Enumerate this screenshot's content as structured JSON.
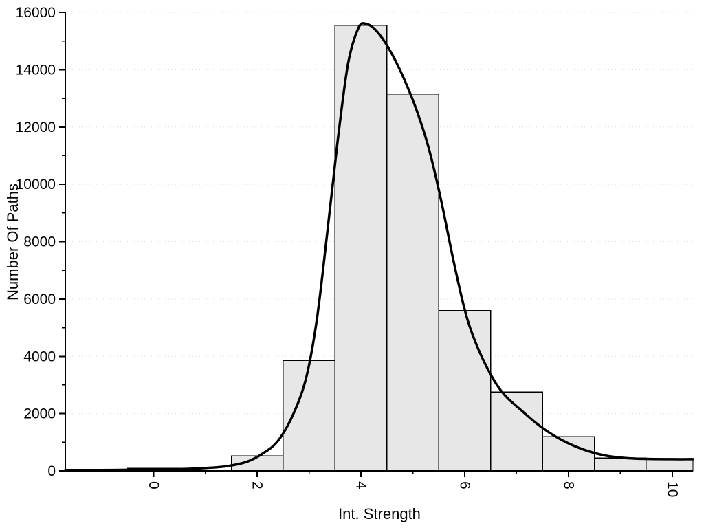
{
  "chart_data": {
    "type": "bar",
    "subtype": "histogram-with-density-curve",
    "title": "",
    "xlabel": "Int. Strength",
    "ylabel": "Number Of Paths",
    "xlim": [
      -1.7,
      10.4
    ],
    "ylim": [
      0,
      16000
    ],
    "x_major_ticks": [
      0,
      2,
      4,
      6,
      8,
      10
    ],
    "x_minor_ticks": [
      1,
      3,
      5,
      7,
      9
    ],
    "y_major_ticks": [
      0,
      2000,
      4000,
      6000,
      8000,
      10000,
      12000,
      14000,
      16000
    ],
    "y_minor_ticks": [
      1000,
      3000,
      5000,
      7000,
      9000,
      11000,
      13000,
      15000
    ],
    "x_tick_labels": [
      "0",
      "2",
      "4",
      "6",
      "8",
      "10"
    ],
    "y_tick_labels": [
      "0",
      "2000",
      "4000",
      "6000",
      "8000",
      "10000",
      "12000",
      "14000",
      "16000"
    ],
    "grid": "horizontal-dotted",
    "legend": "none",
    "bar_width": 1,
    "bars": {
      "centers": [
        0,
        1,
        2,
        3,
        4,
        5,
        6,
        7,
        8,
        9,
        10
      ],
      "values": [
        90,
        30,
        525,
        3850,
        15550,
        13150,
        5600,
        2750,
        1200,
        450,
        420
      ]
    },
    "curve": {
      "x": [
        -1.7,
        -1.0,
        -0.3,
        0.3,
        0.9,
        1.4,
        1.8,
        2.1,
        2.4,
        2.7,
        2.95,
        3.15,
        3.35,
        3.55,
        3.75,
        3.95,
        4.1,
        4.3,
        4.55,
        4.8,
        5.05,
        5.3,
        5.55,
        5.8,
        6.05,
        6.35,
        6.7,
        7.1,
        7.5,
        7.9,
        8.3,
        8.7,
        9.1,
        9.5,
        10.0,
        10.4
      ],
      "y": [
        30,
        30,
        40,
        55,
        90,
        160,
        320,
        600,
        1050,
        2000,
        3300,
        5300,
        8300,
        11500,
        14200,
        15450,
        15600,
        15350,
        14700,
        13800,
        12700,
        11300,
        9400,
        7200,
        5300,
        3900,
        2800,
        2100,
        1500,
        1050,
        740,
        540,
        450,
        420,
        410,
        410
      ]
    },
    "colors": {
      "bar_fill": "#e7e7e7",
      "bar_stroke": "#000000",
      "curve": "#000000",
      "grid": "#dcdcdc",
      "axis": "#000000",
      "background": "#ffffff"
    }
  }
}
